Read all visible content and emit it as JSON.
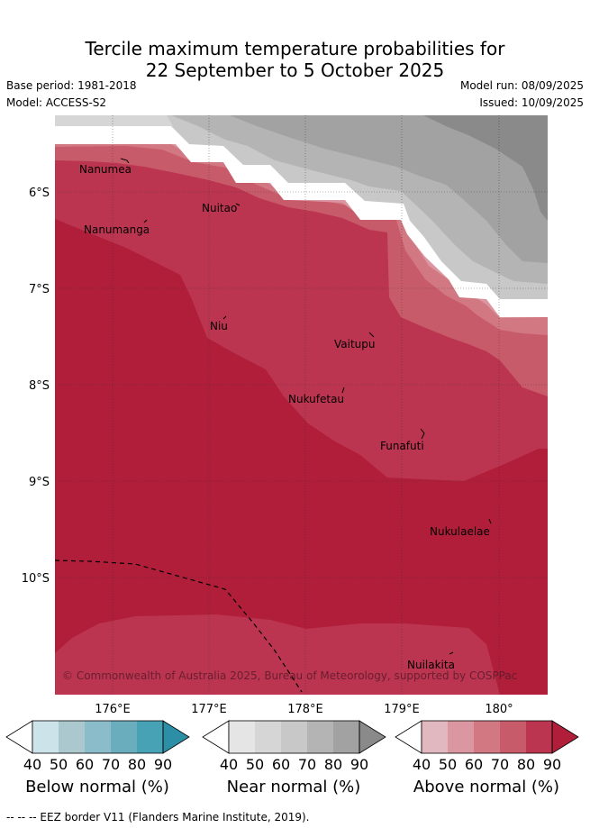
{
  "title": {
    "line1": "Tercile maximum temperature probabilities for",
    "line2": "22 September to 5 October 2025"
  },
  "meta": {
    "base_period": "Base period: 1981-2018",
    "model": "Model: ACCESS-S2",
    "model_run": "Model run: 08/09/2025",
    "issued": "Issued: 10/09/2025"
  },
  "map": {
    "lat_labels": [
      "6°S",
      "7°S",
      "8°S",
      "9°S",
      "10°S"
    ],
    "lon_labels": [
      "176°E",
      "177°E",
      "178°E",
      "179°E",
      "180°"
    ],
    "places": [
      {
        "name": "Nanumea"
      },
      {
        "name": "Nuitao"
      },
      {
        "name": "Nanumanga"
      },
      {
        "name": "Niu"
      },
      {
        "name": "Vaitupu"
      },
      {
        "name": "Nukufetau"
      },
      {
        "name": "Funafuti"
      },
      {
        "name": "Nukulaelae"
      },
      {
        "name": "Nuilakita"
      }
    ],
    "copyright": "© Commonwealth of Australia 2025, Bureau of Meteorology, supported by COSPPac",
    "colors": {
      "above_40": "#e2b8c0",
      "above_50": "#da96a1",
      "above_60": "#d27882",
      "above_70": "#c85b69",
      "above_80": "#bc3550",
      "above_90": "#b01e3a",
      "near_40": "#e5e5e5",
      "near_50": "#d6d6d6",
      "near_60": "#c8c8c8",
      "near_70": "#b4b4b4",
      "near_80": "#a2a2a2",
      "near_90": "#8a8a8a",
      "below_40": "#cde3ea",
      "below_50": "#aac8ce",
      "below_60": "#8bbcca",
      "below_70": "#6aaebe",
      "below_80": "#46a2b4",
      "below_90": "#2d8fa6"
    }
  },
  "legends": [
    {
      "label": "Below normal (%)",
      "ticks": [
        "40",
        "50",
        "60",
        "70",
        "80",
        "90"
      ]
    },
    {
      "label": "Near normal (%)",
      "ticks": [
        "40",
        "50",
        "60",
        "70",
        "80",
        "90"
      ]
    },
    {
      "label": "Above normal (%)",
      "ticks": [
        "40",
        "50",
        "60",
        "70",
        "80",
        "90"
      ]
    }
  ],
  "footer": "--  --  -- EEZ border V11 (Flanders Marine Institute, 2019)."
}
